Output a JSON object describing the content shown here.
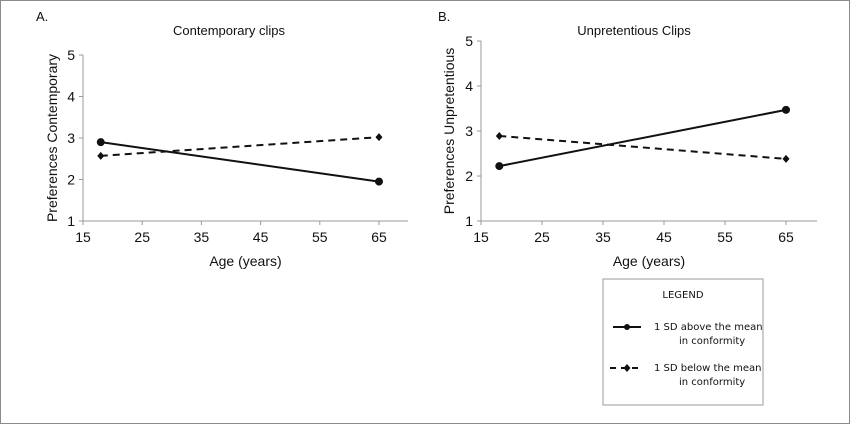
{
  "chart_data": [
    {
      "type": "line",
      "panel_label": "A.",
      "title": "Contemporary clips",
      "xlabel": "Age (years)",
      "ylabel": "Preferences Contemporary",
      "xlim": [
        15,
        70
      ],
      "ylim": [
        1,
        5
      ],
      "xticks": [
        15,
        25,
        35,
        45,
        55,
        65
      ],
      "yticks": [
        1,
        2,
        3,
        4,
        5
      ],
      "grid": false,
      "x": [
        18,
        65
      ],
      "series": [
        {
          "name": "1 SD above the mean in conformity",
          "style": "solid",
          "marker": "circle",
          "values": [
            2.9,
            1.95
          ]
        },
        {
          "name": "1 SD below the mean in conformity",
          "style": "dashed",
          "marker": "diamond",
          "values": [
            2.57,
            3.02
          ]
        }
      ]
    },
    {
      "type": "line",
      "panel_label": "B.",
      "title": "Unpretentious Clips",
      "xlabel": "Age (years)",
      "ylabel": "Preferences Unpretentious",
      "xlim": [
        15,
        70
      ],
      "ylim": [
        1,
        5
      ],
      "xticks": [
        15,
        25,
        35,
        45,
        55,
        65
      ],
      "yticks": [
        1,
        2,
        3,
        4,
        5
      ],
      "grid": false,
      "x": [
        18,
        65
      ],
      "series": [
        {
          "name": "1 SD above the mean in conformity",
          "style": "solid",
          "marker": "circle",
          "values": [
            2.22,
            3.47
          ]
        },
        {
          "name": "1 SD below the mean in conformity",
          "style": "dashed",
          "marker": "diamond",
          "values": [
            2.89,
            2.38
          ]
        }
      ]
    }
  ],
  "legend": {
    "title": "LEGEND",
    "placement": "bottom-right",
    "items": [
      {
        "line1": "1 SD above the mean",
        "line2": "in conformity",
        "style": "solid"
      },
      {
        "line1": "1 SD below the mean",
        "line2": "in conformity",
        "style": "dashed"
      }
    ]
  },
  "colors": {
    "line": "#111111",
    "axis": "#9a9a9a",
    "border": "#8a8a8a"
  }
}
